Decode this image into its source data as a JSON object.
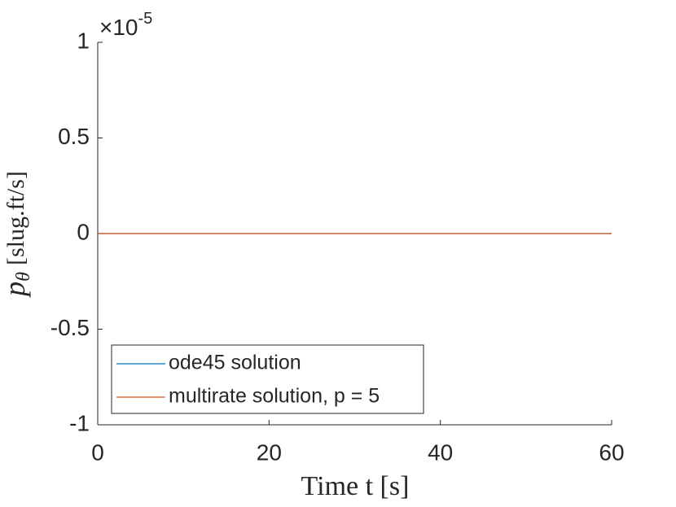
{
  "chart_data": {
    "type": "line",
    "ylabel": {
      "symbol": "p",
      "subscript": "θ",
      "unit": "[slug.ft/s]"
    },
    "xlabel": "Time t [s]",
    "y_multiplier": {
      "base": "×10",
      "exponent": "-5"
    },
    "x": [
      0,
      60
    ],
    "series": [
      {
        "name": "ode45 solution",
        "color": "#0072BD",
        "values": [
          0,
          0
        ]
      },
      {
        "name": "multirate solution, p = 5",
        "color": "#D95319",
        "values": [
          0,
          0
        ]
      }
    ],
    "xlim": [
      0,
      60
    ],
    "xticks": [
      0,
      20,
      40,
      60
    ],
    "ylim": [
      -1e-05,
      1e-05
    ],
    "yticks": [
      {
        "value": -1e-05,
        "label": "-1"
      },
      {
        "value": -5e-06,
        "label": "-0.5"
      },
      {
        "value": 0,
        "label": "0"
      },
      {
        "value": 5e-06,
        "label": "0.5"
      },
      {
        "value": 1e-05,
        "label": "1"
      }
    ],
    "grid": false,
    "legend": "lower left"
  }
}
